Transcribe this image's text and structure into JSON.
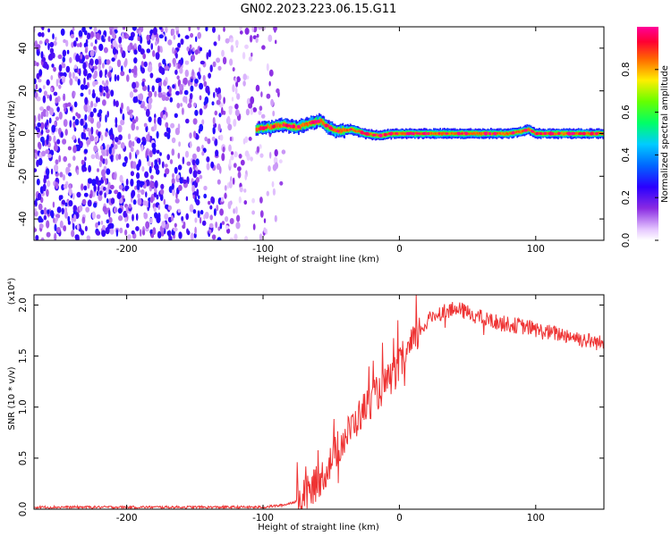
{
  "title": "GN02.2023.223.06.15.G11",
  "chart_data": [
    {
      "type": "heatmap",
      "xlabel": "Height of straight line (km)",
      "ylabel": "Frequency (Hz)",
      "xlim": [
        -268,
        150
      ],
      "ylim": [
        -50,
        50
      ],
      "xticks": [
        -200,
        -100,
        0,
        100
      ],
      "xtick_labels": [
        "-200",
        "-100",
        "0",
        "100"
      ],
      "yticks": [
        -40,
        -20,
        0,
        20,
        40
      ],
      "ytick_labels": [
        "-40",
        "-20",
        "0",
        "20",
        "40"
      ],
      "colorbar": {
        "label": "Normalized spectral amplitude",
        "range": [
          0.0,
          1.0
        ],
        "ticks": [
          0.0,
          0.2,
          0.4,
          0.6,
          0.8
        ],
        "tick_labels": [
          "0.0",
          "0.2",
          "0.4",
          "0.6",
          "0.8"
        ],
        "colormap": "rainbow (white → purple → blue → cyan → green → yellow → orange → red → magenta)"
      },
      "noise_region": {
        "x_range": [
          -268,
          -85
        ],
        "freq_range": [
          -50,
          50
        ],
        "amplitude": "0.0-0.3"
      },
      "signal_track": {
        "x": [
          -105,
          -95,
          -85,
          -75,
          -65,
          -58,
          -52,
          -45,
          -35,
          -25,
          -15,
          -5,
          0,
          20,
          40,
          60,
          80,
          90,
          95,
          100,
          120,
          150
        ],
        "freq_hz": [
          2,
          3,
          4,
          3,
          5,
          6,
          3,
          1,
          2,
          0,
          -1,
          0,
          0,
          0,
          0,
          0,
          0,
          1,
          2,
          0,
          0,
          0
        ],
        "amplitude": "0.5-1.0"
      },
      "grid": false
    },
    {
      "type": "line",
      "xlabel": "Height of straight line (km)",
      "ylabel": "SNR (10 * v/v)",
      "y_multiplier": "(x10⁴)",
      "xlim": [
        -268,
        150
      ],
      "ylim": [
        0,
        2.1
      ],
      "xticks": [
        -200,
        -100,
        0,
        100
      ],
      "xtick_labels": [
        "-200",
        "-100",
        "0",
        "100"
      ],
      "yticks": [
        0.0,
        0.5,
        1.0,
        1.5,
        2.0
      ],
      "ytick_labels": [
        "0.0",
        "0.5",
        "1.0",
        "1.5",
        "2.0"
      ],
      "series": [
        {
          "color": "#ee3333",
          "x": [
            -268,
            -240,
            -200,
            -160,
            -120,
            -100,
            -85,
            -75,
            -65,
            -55,
            -45,
            -35,
            -25,
            -15,
            -5,
            5,
            15,
            25,
            35,
            45,
            55,
            65,
            75,
            85,
            95,
            105,
            115,
            125,
            135,
            150
          ],
          "y": [
            0.02,
            0.02,
            0.02,
            0.02,
            0.02,
            0.02,
            0.04,
            0.08,
            0.18,
            0.35,
            0.6,
            0.8,
            1.0,
            1.15,
            1.3,
            1.5,
            1.75,
            1.9,
            1.95,
            1.95,
            1.9,
            1.85,
            1.82,
            1.8,
            1.78,
            1.74,
            1.72,
            1.7,
            1.66,
            1.62
          ]
        }
      ],
      "grid": false
    }
  ]
}
